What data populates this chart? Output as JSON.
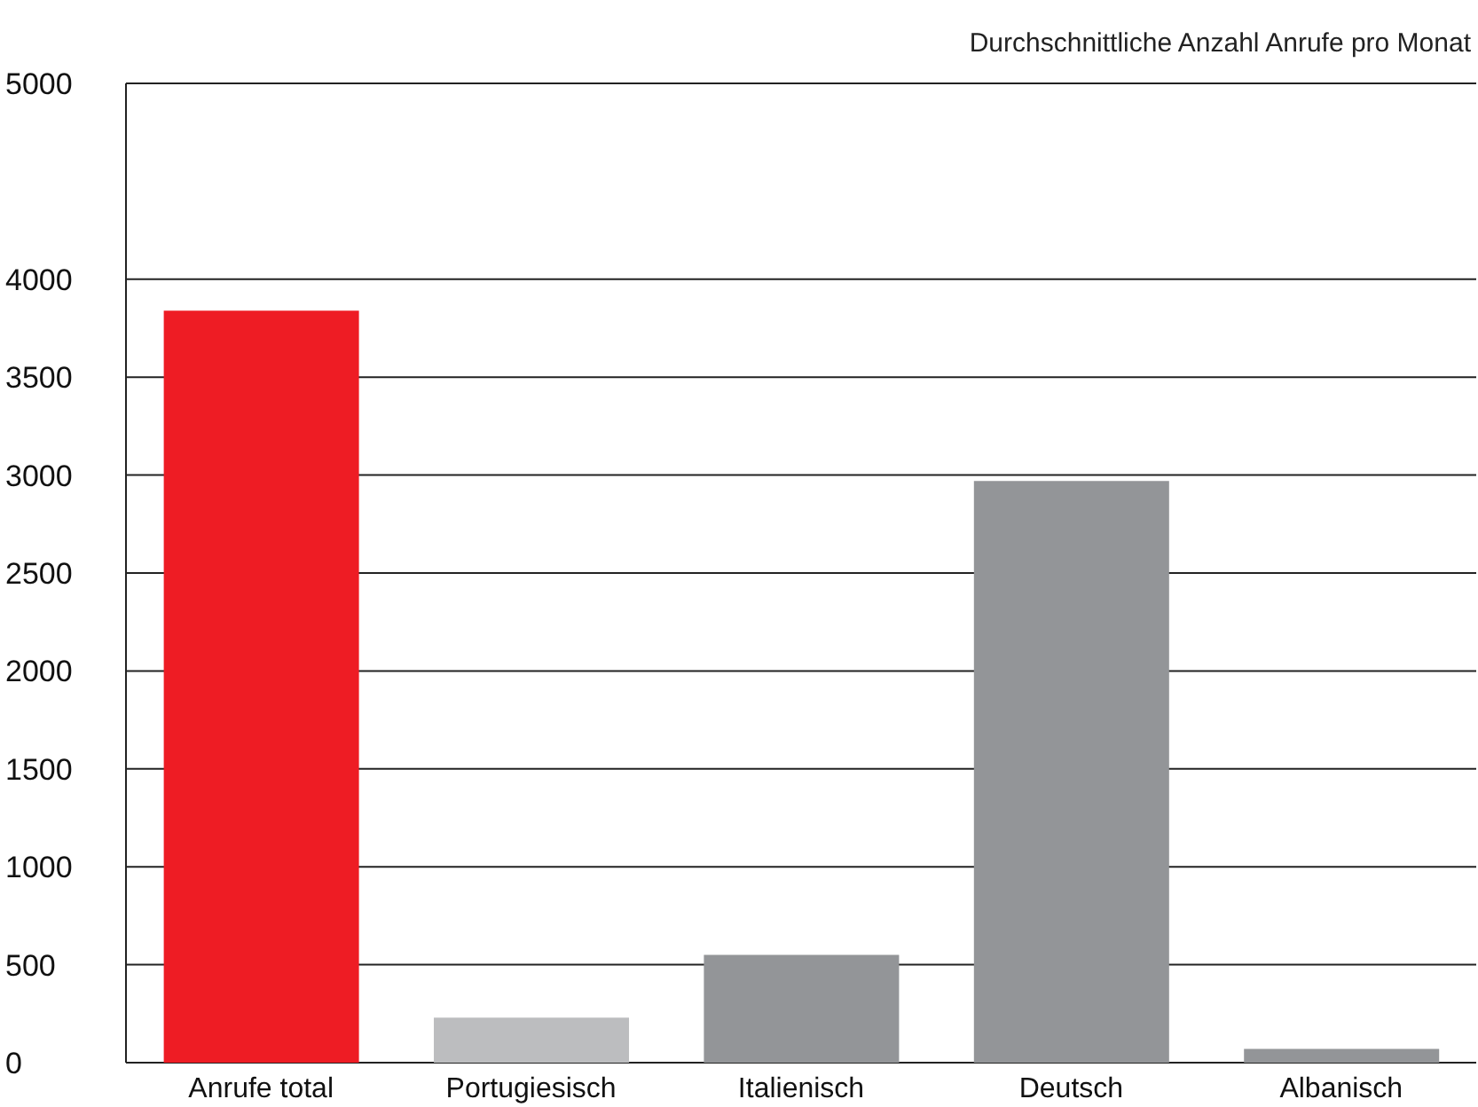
{
  "chart_data": {
    "type": "bar",
    "title": "Durchschnittliche Anzahl Anrufe pro Monat",
    "categories": [
      "Anrufe total",
      "Portugiesisch",
      "Italienisch",
      "Deutsch",
      "Albanisch"
    ],
    "values": [
      3840,
      230,
      550,
      2970,
      70
    ],
    "colors": [
      "#ee1c24",
      "#bcbdbf",
      "#939598",
      "#939598",
      "#939598"
    ],
    "ylim": [
      0,
      5000
    ],
    "yticks": [
      0,
      500,
      1000,
      1500,
      2000,
      2500,
      3000,
      3500,
      4000,
      5000
    ],
    "grid": "y"
  }
}
